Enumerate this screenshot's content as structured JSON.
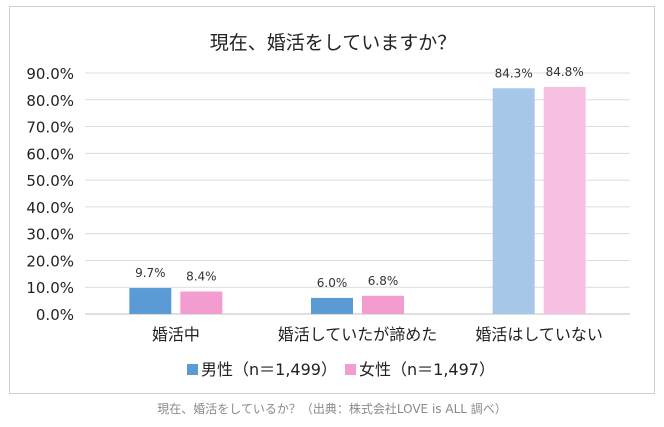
{
  "chart_data": {
    "type": "bar",
    "title": "現在、婚活をしていますか？",
    "categories": [
      "婚活中",
      "婚活していたが諦めた",
      "婚活はしていない"
    ],
    "series": [
      {
        "name": "男性（n＝1,499）",
        "values": [
          9.7,
          6.0,
          84.3
        ],
        "labels": [
          "9.7%",
          "6.0%",
          "84.3%"
        ],
        "color": "#5b9bd5",
        "color_light": "#a7c7e8"
      },
      {
        "name": "女性（n＝1,497）",
        "values": [
          8.4,
          6.8,
          84.8
        ],
        "labels": [
          "8.4%",
          "6.8%",
          "84.8%"
        ],
        "color": "#f39ccf",
        "color_light": "#f7bfe2"
      }
    ],
    "highlight_category_index": 2,
    "ylim": [
      0,
      90
    ],
    "yticks": [
      {
        "value": 0,
        "label": "0.0%"
      },
      {
        "value": 10,
        "label": "10.0%"
      },
      {
        "value": 20,
        "label": "20.0%"
      },
      {
        "value": 30,
        "label": "30.0%"
      },
      {
        "value": 40,
        "label": "40.0%"
      },
      {
        "value": 50,
        "label": "50.0%"
      },
      {
        "value": 60,
        "label": "60.0%"
      },
      {
        "value": 70,
        "label": "70.0%"
      },
      {
        "value": 80,
        "label": "80.0%"
      },
      {
        "value": 90,
        "label": "90.0%"
      }
    ],
    "grid": true,
    "legend": "bottom"
  },
  "caption": "現在、婚活をしているか？（出典：株式会社LOVE is ALL 調べ）"
}
